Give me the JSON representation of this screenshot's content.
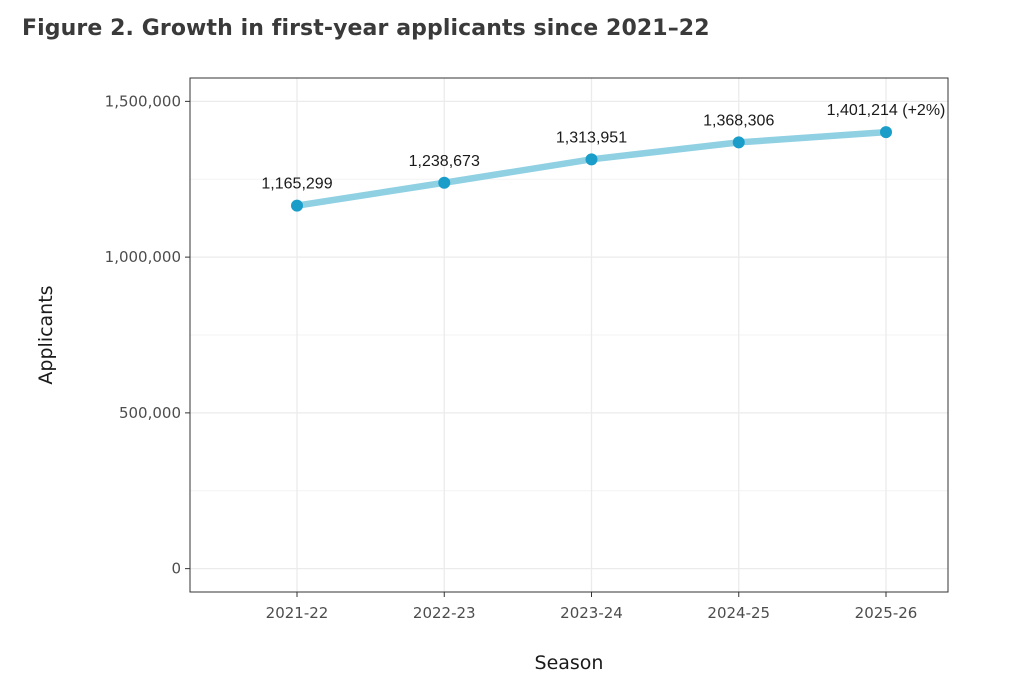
{
  "figure_title": "Figure 2. Growth in first-year applicants since 2021–22",
  "colors": {
    "line": "#8fd0e3",
    "point": "#1a9ec9",
    "grid": "#ebebeb",
    "panel_border": "#333333"
  },
  "chart_data": {
    "type": "line",
    "title": "Figure 2. Growth in first-year applicants since 2021–22",
    "xlabel": "Season",
    "ylabel": "Applicants",
    "categories": [
      "2021-22",
      "2022-23",
      "2023-24",
      "2024-25",
      "2025-26"
    ],
    "values": [
      1165299,
      1238673,
      1313951,
      1368306,
      1401214
    ],
    "data_labels": [
      "1,165,299",
      "1,238,673",
      "1,313,951",
      "1,368,306",
      "1,401,214 (+2%)"
    ],
    "ylim": [
      -75000,
      1575000
    ],
    "yticks": [
      0,
      500000,
      1000000,
      1500000
    ],
    "ytick_labels": [
      "0",
      "500,000",
      "1,000,000",
      "1,500,000"
    ],
    "grid": true,
    "legend": "none"
  }
}
